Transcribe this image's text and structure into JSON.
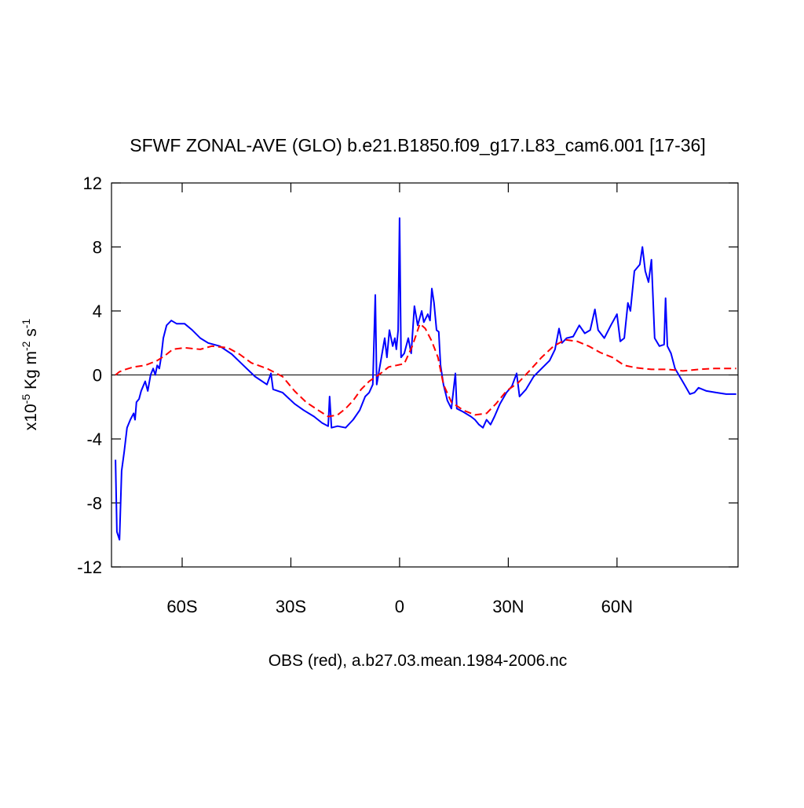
{
  "chart_data": {
    "type": "line",
    "title": "SFWF ZONAL-AVE (GLO) b.e21.B1850.f09_g17.L83_cam6.001 [17-36]",
    "xlabel": "OBS (red), a.b27.03.mean.1984-2006.nc",
    "ylabel_parts": [
      {
        "text": "x10"
      },
      {
        "text": "-5",
        "sup": true
      },
      {
        "text": " Kg m"
      },
      {
        "text": "-2",
        "sup": true
      },
      {
        "text": " s"
      },
      {
        "text": "-1",
        "sup": true
      }
    ],
    "xlim": [
      -79.5,
      93.4
    ],
    "ylim": [
      -12,
      12
    ],
    "xticks": [
      {
        "value": -60,
        "label": "60S"
      },
      {
        "value": -30,
        "label": "30S"
      },
      0,
      {
        "value": 30,
        "label": "30N"
      },
      {
        "value": 60,
        "label": "60N"
      }
    ],
    "yticks": [
      -12,
      -8,
      -4,
      0,
      4,
      8,
      12
    ],
    "reference_line": 0,
    "series": [
      {
        "color": "#0000ff",
        "dashed": false,
        "x": [
          -78.4,
          -78.0,
          -77.3,
          -76.7,
          -76.0,
          -75.2,
          -74.3,
          -73.4,
          -73.0,
          -72.6,
          -71.9,
          -71.3,
          -70.2,
          -69.5,
          -68.7,
          -68.0,
          -67.4,
          -66.9,
          -66.3,
          -65.8,
          -65.2,
          -64.3,
          -63.0,
          -61.5,
          -59.3,
          -57.2,
          -55.0,
          -52.8,
          -49.6,
          -46.3,
          -43.1,
          -39.9,
          -36.6,
          -35.5,
          -34.9,
          -32.3,
          -29.0,
          -26.5,
          -23.6,
          -21.4,
          -19.7,
          -19.3,
          -18.8,
          -17.1,
          -14.9,
          -12.8,
          -11.0,
          -9.5,
          -8.4,
          -7.4,
          -6.7,
          -6.3,
          -5.2,
          -4.1,
          -3.5,
          -2.8,
          -1.9,
          -1.3,
          -0.9,
          -0.4,
          0,
          0.4,
          1.3,
          2.4,
          3.2,
          4.1,
          5.0,
          6.1,
          6.7,
          7.8,
          8.4,
          8.9,
          9.5,
          10.2,
          10.8,
          11.3,
          12.1,
          13.2,
          14.3,
          15.4,
          15.8,
          17.5,
          19.7,
          20.8,
          21.9,
          23.0,
          24.0,
          25.1,
          26.2,
          27.7,
          29.5,
          31.0,
          32.3,
          33.1,
          34.9,
          37.0,
          39.2,
          41.4,
          42.9,
          44.0,
          44.8,
          46.1,
          47.9,
          49.6,
          51.1,
          52.6,
          53.9,
          54.8,
          56.5,
          58.3,
          60.0,
          60.9,
          62.0,
          63.0,
          63.7,
          64.8,
          66.3,
          67.0,
          67.8,
          68.7,
          69.5,
          70.4,
          71.7,
          73.0,
          73.4,
          73.9,
          74.9,
          76.0,
          77.3,
          78.6,
          80.1,
          81.4,
          82.5,
          84.7,
          87.3,
          90.1,
          92.9
        ],
        "values": [
          -5.3,
          -9.8,
          -10.3,
          -6.0,
          -4.8,
          -3.3,
          -2.8,
          -2.4,
          -2.8,
          -1.7,
          -1.5,
          -1.0,
          -0.4,
          -1.0,
          0,
          0.4,
          0,
          0.6,
          0.4,
          1.1,
          2.3,
          3.1,
          3.4,
          3.2,
          3.2,
          2.8,
          2.3,
          2.0,
          1.8,
          1.3,
          0.6,
          -0.1,
          -0.6,
          0.1,
          -0.9,
          -1.1,
          -1.8,
          -2.2,
          -2.6,
          -3.0,
          -3.2,
          -1.35,
          -3.3,
          -3.2,
          -3.3,
          -2.8,
          -2.2,
          -1.35,
          -1.1,
          -0.6,
          5.0,
          -0.6,
          0.85,
          2.3,
          1.1,
          2.8,
          1.8,
          2.3,
          1.6,
          2.8,
          9.8,
          1.1,
          1.35,
          2.3,
          1.35,
          4.3,
          3.1,
          4.0,
          3.3,
          3.8,
          3.4,
          5.4,
          4.5,
          2.8,
          2.7,
          0.6,
          -0.6,
          -1.6,
          -2.1,
          0.1,
          -2.1,
          -2.3,
          -2.6,
          -2.8,
          -3.1,
          -3.3,
          -2.8,
          -3.1,
          -2.6,
          -1.8,
          -1.1,
          -0.7,
          0.1,
          -1.35,
          -0.9,
          -0.1,
          0.4,
          0.9,
          1.6,
          2.9,
          2.0,
          2.3,
          2.4,
          3.1,
          2.6,
          2.8,
          4.1,
          2.8,
          2.3,
          3.1,
          3.8,
          2.1,
          2.3,
          4.5,
          4.0,
          6.5,
          6.9,
          8.0,
          6.5,
          5.8,
          7.2,
          2.3,
          1.8,
          1.9,
          4.8,
          1.8,
          1.35,
          0.4,
          -0.1,
          -0.6,
          -1.2,
          -1.1,
          -0.8,
          -1.0,
          -1.1,
          -1.2,
          -1.2
        ]
      },
      {
        "color": "#ff0000",
        "dashed": true,
        "x": [
          -78.4,
          -77.3,
          -75.6,
          -73.4,
          -70.2,
          -66.9,
          -64.8,
          -62.6,
          -59.3,
          -55.0,
          -51.8,
          -47.4,
          -44.2,
          -40.9,
          -36.6,
          -32.3,
          -29.0,
          -25.8,
          -22.5,
          -19.7,
          -17.1,
          -14.9,
          -12.8,
          -10.6,
          -8.4,
          -5.2,
          -3.0,
          -0.9,
          1.3,
          3.5,
          5.6,
          7.1,
          8.9,
          10.6,
          12.1,
          14.3,
          17.5,
          20.8,
          24.0,
          26.6,
          29.5,
          32.7,
          36.0,
          39.2,
          42.5,
          45.7,
          49.0,
          52.2,
          55.4,
          58.7,
          62.0,
          65.2,
          69.5,
          73.9,
          78.2,
          82.5,
          86.9,
          92.9
        ],
        "values": [
          0,
          0.2,
          0.35,
          0.5,
          0.6,
          0.9,
          1.2,
          1.6,
          1.7,
          1.6,
          1.8,
          1.7,
          1.3,
          0.75,
          0.4,
          -0.1,
          -1.0,
          -1.7,
          -2.2,
          -2.6,
          -2.5,
          -2.1,
          -1.6,
          -0.9,
          -0.4,
          0.1,
          0.5,
          0.6,
          0.7,
          1.8,
          3.2,
          2.9,
          2.1,
          1.1,
          -0.6,
          -1.7,
          -2.2,
          -2.5,
          -2.4,
          -1.8,
          -1.0,
          -0.5,
          0.3,
          1.1,
          1.8,
          2.2,
          2.1,
          1.8,
          1.4,
          1.1,
          0.6,
          0.45,
          0.35,
          0.35,
          0.25,
          0.35,
          0.4,
          0.4
        ]
      }
    ]
  }
}
